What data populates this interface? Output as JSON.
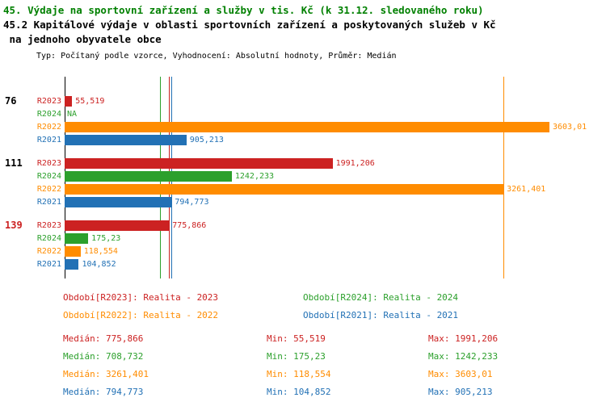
{
  "header": {
    "title": "45. Výdaje na sportovní zařízení a služby v tis. Kč (k 31.12. sledovaného roku)",
    "subtitle1": "45.2 Kapitálové výdaje v oblasti sportovních zařízení a poskytovaných služeb v Kč",
    "subtitle2": " na jednoho obyvatele obce",
    "meta": "Typ: Počítaný podle vzorce, Vyhodnocení: Absolutní hodnoty, Průměr: Medián"
  },
  "colors": {
    "title_green": "#008000",
    "R2023": "#cc2222",
    "R2024": "#2ca02c",
    "R2022": "#ff8c00",
    "R2021": "#2271b5",
    "axis": "#000000"
  },
  "chart_data": {
    "type": "bar",
    "orientation": "horizontal",
    "x_max": 3603.01,
    "xlim": [
      0,
      3603.01
    ],
    "na_label": "NA",
    "groups": [
      {
        "label": "76",
        "label_color": "#000000",
        "bars": [
          {
            "series": "R2023",
            "value": 55.519,
            "display": "55,519"
          },
          {
            "series": "R2024",
            "value": null,
            "display": "NA"
          },
          {
            "series": "R2022",
            "value": 3603.01,
            "display": "3603,01"
          },
          {
            "series": "R2021",
            "value": 905.213,
            "display": "905,213"
          }
        ]
      },
      {
        "label": "111",
        "label_color": "#000000",
        "bars": [
          {
            "series": "R2023",
            "value": 1991.206,
            "display": "1991,206"
          },
          {
            "series": "R2024",
            "value": 1242.233,
            "display": "1242,233"
          },
          {
            "series": "R2022",
            "value": 3261.401,
            "display": "3261,401"
          },
          {
            "series": "R2021",
            "value": 794.773,
            "display": "794,773"
          }
        ]
      },
      {
        "label": "139",
        "label_color": "#cc2222",
        "bars": [
          {
            "series": "R2023",
            "value": 775.866,
            "display": "775,866"
          },
          {
            "series": "R2024",
            "value": 175.23,
            "display": "175,23"
          },
          {
            "series": "R2022",
            "value": 118.554,
            "display": "118,554"
          },
          {
            "series": "R2021",
            "value": 104.852,
            "display": "104,852"
          }
        ]
      }
    ],
    "median_lines": [
      {
        "series": "R2024",
        "value": 708.732
      },
      {
        "series": "R2023",
        "value": 775.866
      },
      {
        "series": "R2021",
        "value": 794.773
      },
      {
        "series": "R2022",
        "value": 3261.401
      }
    ]
  },
  "legend": {
    "items": [
      {
        "series": "R2023",
        "label": "Období[R2023]: Realita - 2023",
        "col": 0,
        "row": 0
      },
      {
        "series": "R2024",
        "label": "Období[R2024]: Realita - 2024",
        "col": 1,
        "row": 0
      },
      {
        "series": "R2022",
        "label": "Období[R2022]: Realita - 2022",
        "col": 0,
        "row": 1
      },
      {
        "series": "R2021",
        "label": "Období[R2021]: Realita - 2021",
        "col": 1,
        "row": 1
      }
    ]
  },
  "stats": {
    "rows": [
      {
        "series": "R2023",
        "median": "Medián: 775,866",
        "min": "Min: 55,519",
        "max": "Max: 1991,206"
      },
      {
        "series": "R2024",
        "median": "Medián: 708,732",
        "min": "Min: 175,23",
        "max": "Max: 1242,233"
      },
      {
        "series": "R2022",
        "median": "Medián: 3261,401",
        "min": "Min: 118,554",
        "max": "Max: 3603,01"
      },
      {
        "series": "R2021",
        "median": "Medián: 794,773",
        "min": "Min: 104,852",
        "max": "Max: 905,213"
      }
    ]
  }
}
